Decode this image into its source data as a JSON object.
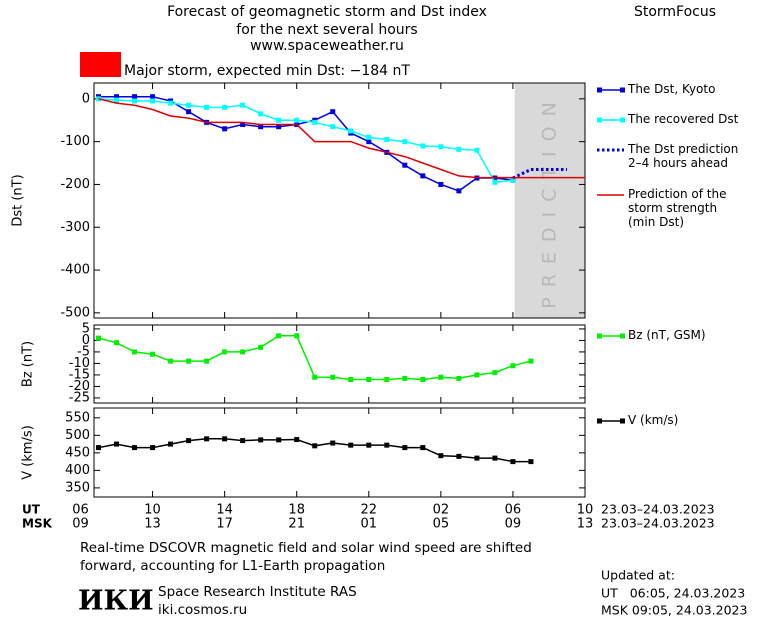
{
  "header": {
    "title_lines": [
      "Forecast of geomagnetic storm and Dst index",
      "for the next several hours",
      "www.spaceweather.ru"
    ],
    "brand": "StormFocus"
  },
  "time_axis": {
    "xlim": [
      6.75,
      34
    ],
    "ut_label": "UT",
    "msk_label": "MSK",
    "range_label": "23.03–24.03.2023",
    "ut_ticks": [
      {
        "value": 6,
        "label": "06"
      },
      10,
      14,
      18,
      22,
      {
        "value": 26,
        "label": "02"
      },
      {
        "value": 30,
        "label": "06"
      },
      {
        "value": 34,
        "label": "10"
      }
    ],
    "msk_ticks": [
      {
        "value": 6,
        "label": "09"
      },
      {
        "value": 10,
        "label": "13"
      },
      {
        "value": 14,
        "label": "17"
      },
      {
        "value": 18,
        "label": "21"
      },
      {
        "value": 22,
        "label": "01"
      },
      {
        "value": 26,
        "label": "05"
      },
      {
        "value": 30,
        "label": "09"
      },
      {
        "value": 34,
        "label": "13"
      }
    ]
  },
  "chart_data": [
    {
      "type": "line",
      "ylabel": "Dst (nT)",
      "ylim": [
        -512,
        37
      ],
      "yticks": [
        0,
        -100,
        -200,
        -300,
        -400,
        -500
      ],
      "annotation": {
        "text": "Major storm, expected min Dst: −184 nT",
        "color": "#ff0000"
      },
      "shade": {
        "label": "PREDICTION",
        "xlim": [
          30.1,
          34
        ],
        "color": "#d9d9d9"
      },
      "series": [
        {
          "name": "The Dst, Kyoto",
          "color": "#0000dd",
          "marker": "square",
          "style": "solid",
          "x": [
            7,
            8,
            9,
            10,
            11,
            12,
            13,
            14,
            15,
            16,
            17,
            18,
            19,
            20,
            21,
            22,
            23,
            24,
            25,
            26,
            27,
            28,
            29,
            30
          ],
          "values": [
            5,
            5,
            5,
            5,
            -5,
            -30,
            -55,
            -70,
            -60,
            -65,
            -65,
            -60,
            -50,
            -30,
            -80,
            -100,
            -125,
            -155,
            -180,
            -200,
            -215,
            -185,
            -185,
            -190
          ]
        },
        {
          "name": "The recovered Dst",
          "color": "#00ffff",
          "marker": "square",
          "style": "solid",
          "x": [
            7,
            8,
            9,
            10,
            11,
            12,
            13,
            14,
            15,
            16,
            17,
            18,
            19,
            20,
            21,
            22,
            23,
            24,
            25,
            26,
            27,
            28,
            29,
            30
          ],
          "values": [
            0,
            -3,
            -5,
            -5,
            -10,
            -15,
            -20,
            -20,
            -15,
            -35,
            -50,
            -50,
            -55,
            -65,
            -75,
            -90,
            -95,
            -100,
            -110,
            -112,
            -118,
            -120,
            -195,
            -190
          ]
        },
        {
          "name": "The Dst prediction\n2–4 hours ahead",
          "color": "#0000dd",
          "marker": "none",
          "style": "dotted",
          "x": [
            30,
            31,
            32,
            33
          ],
          "values": [
            -185,
            -165,
            -165,
            -165
          ]
        },
        {
          "name": "Prediction of the\nstorm strength\n(min Dst)",
          "color": "#dd0000",
          "marker": "none",
          "style": "solid",
          "x": [
            7,
            8,
            9,
            10,
            11,
            12,
            13,
            14,
            15,
            16,
            17,
            18,
            19,
            20,
            21,
            22,
            23,
            24,
            25,
            26,
            27,
            28,
            29,
            30,
            34
          ],
          "values": [
            0,
            -10,
            -15,
            -25,
            -40,
            -45,
            -55,
            -55,
            -55,
            -60,
            -60,
            -60,
            -100,
            -100,
            -100,
            -115,
            -125,
            -135,
            -150,
            -165,
            -180,
            -184,
            -184,
            -184,
            -184
          ]
        }
      ]
    },
    {
      "type": "line",
      "ylabel": "Bz (nT)",
      "ylim": [
        -27.2,
        6.7
      ],
      "yticks": [
        5,
        0,
        -5,
        -10,
        -15,
        -20,
        -25
      ],
      "series": [
        {
          "name": "Bz (nT, GSM)",
          "color": "#00ee00",
          "marker": "square",
          "style": "solid",
          "x": [
            7,
            8,
            9,
            10,
            11,
            12,
            13,
            14,
            15,
            16,
            17,
            18,
            19,
            20,
            21,
            22,
            23,
            24,
            25,
            26,
            27,
            28,
            29,
            30,
            31
          ],
          "values": [
            1,
            -1,
            -5,
            -6,
            -9,
            -9,
            -9,
            -5,
            -5,
            -3,
            2,
            2,
            -16,
            -16,
            -17,
            -17,
            -17,
            -16.5,
            -17,
            -16,
            -16.5,
            -15,
            -14,
            -11,
            -9
          ]
        }
      ]
    },
    {
      "type": "line",
      "ylabel": "V (km/s)",
      "ylim": [
        324,
        578
      ],
      "yticks": [
        550,
        500,
        450,
        400,
        350
      ],
      "series": [
        {
          "name": "V (km/s)",
          "color": "#000000",
          "marker": "square",
          "style": "solid",
          "x": [
            7,
            8,
            9,
            10,
            11,
            12,
            13,
            14,
            15,
            16,
            17,
            18,
            19,
            20,
            21,
            22,
            23,
            24,
            25,
            26,
            27,
            28,
            29,
            30,
            31
          ],
          "values": [
            465,
            475,
            465,
            465,
            475,
            485,
            490,
            490,
            485,
            487,
            487,
            488,
            470,
            478,
            472,
            472,
            472,
            465,
            465,
            442,
            440,
            435,
            435,
            425,
            425
          ]
        }
      ]
    }
  ],
  "footer": {
    "note_lines": [
      "Real-time DSCOVR magnetic field and solar wind speed are shifted",
      "forward, accounting for L1-Earth propagation"
    ],
    "logo": "ИКИ",
    "institute_lines": [
      "Space Research Institute RAS",
      "iki.cosmos.ru"
    ],
    "updated_lines": [
      "Updated at:",
      "UT   06:05, 24.03.2023",
      "MSK 09:05, 24.03.2023"
    ]
  }
}
